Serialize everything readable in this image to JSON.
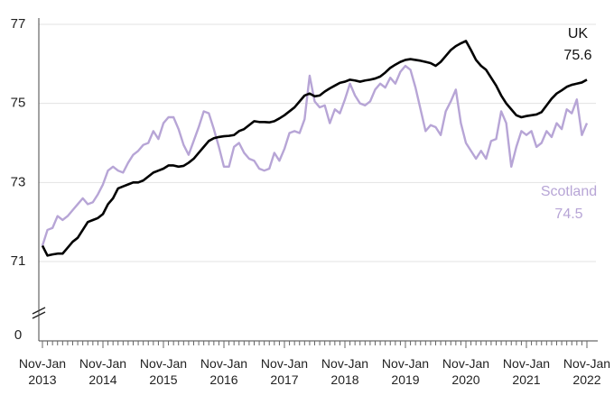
{
  "chart_data": {
    "type": "line",
    "categories": [
      "Nov-Jan 2013",
      null,
      null,
      null,
      null,
      null,
      null,
      null,
      null,
      null,
      null,
      null,
      "Nov-Jan 2014",
      null,
      null,
      null,
      null,
      null,
      null,
      null,
      null,
      null,
      null,
      null,
      "Nov-Jan 2015",
      null,
      null,
      null,
      null,
      null,
      null,
      null,
      null,
      null,
      null,
      null,
      "Nov-Jan 2016",
      null,
      null,
      null,
      null,
      null,
      null,
      null,
      null,
      null,
      null,
      null,
      "Nov-Jan 2017",
      null,
      null,
      null,
      null,
      null,
      null,
      null,
      null,
      null,
      null,
      null,
      "Nov-Jan 2018",
      null,
      null,
      null,
      null,
      null,
      null,
      null,
      null,
      null,
      null,
      null,
      "Nov-Jan 2019",
      null,
      null,
      null,
      null,
      null,
      null,
      null,
      null,
      null,
      null,
      null,
      "Nov-Jan 2020",
      null,
      null,
      null,
      null,
      null,
      null,
      null,
      null,
      null,
      null,
      null,
      "Nov-Jan 2021",
      null,
      null,
      null,
      null,
      null,
      null,
      null,
      null,
      null,
      null,
      null,
      "Nov-Jan 2022"
    ],
    "series": [
      {
        "name": "UK",
        "color": "#000000",
        "values": [
          71.4,
          71.15,
          71.18,
          71.2,
          71.2,
          71.35,
          71.5,
          71.6,
          71.8,
          72.0,
          72.05,
          72.1,
          72.2,
          72.45,
          72.6,
          72.85,
          72.9,
          72.95,
          73.0,
          73.0,
          73.05,
          73.15,
          73.25,
          73.3,
          73.35,
          73.43,
          73.43,
          73.4,
          73.42,
          73.5,
          73.6,
          73.75,
          73.9,
          74.05,
          74.12,
          74.15,
          74.17,
          74.18,
          74.2,
          74.3,
          74.35,
          74.45,
          74.55,
          74.53,
          74.53,
          74.52,
          74.55,
          74.62,
          74.7,
          74.8,
          74.9,
          75.05,
          75.2,
          75.25,
          75.18,
          75.2,
          75.3,
          75.38,
          75.45,
          75.52,
          75.55,
          75.6,
          75.58,
          75.55,
          75.58,
          75.6,
          75.63,
          75.68,
          75.78,
          75.9,
          75.98,
          76.05,
          76.1,
          76.12,
          76.1,
          76.08,
          76.05,
          76.02,
          75.95,
          76.05,
          76.2,
          76.35,
          76.45,
          76.52,
          76.58,
          76.35,
          76.1,
          75.95,
          75.85,
          75.65,
          75.45,
          75.2,
          75.0,
          74.85,
          74.7,
          74.65,
          74.68,
          74.7,
          74.72,
          74.78,
          74.95,
          75.12,
          75.25,
          75.33,
          75.42,
          75.47,
          75.5,
          75.53,
          75.6
        ]
      },
      {
        "name": "Scotland",
        "color": "#b7a5d6",
        "values": [
          71.4,
          71.8,
          71.85,
          72.15,
          72.05,
          72.15,
          72.3,
          72.45,
          72.6,
          72.45,
          72.5,
          72.7,
          72.95,
          73.3,
          73.4,
          73.3,
          73.25,
          73.5,
          73.7,
          73.8,
          73.95,
          74.0,
          74.3,
          74.1,
          74.5,
          74.65,
          74.65,
          74.35,
          73.95,
          73.7,
          74.05,
          74.4,
          74.8,
          74.75,
          74.35,
          73.9,
          73.4,
          73.4,
          73.9,
          74.0,
          73.75,
          73.6,
          73.55,
          73.35,
          73.3,
          73.35,
          73.75,
          73.55,
          73.85,
          74.25,
          74.3,
          74.25,
          74.6,
          75.7,
          75.05,
          74.9,
          74.95,
          74.5,
          74.85,
          74.75,
          75.1,
          75.5,
          75.2,
          75.0,
          74.95,
          75.05,
          75.35,
          75.5,
          75.4,
          75.65,
          75.5,
          75.8,
          75.95,
          75.85,
          75.4,
          74.85,
          74.3,
          74.45,
          74.4,
          74.2,
          74.8,
          75.05,
          75.35,
          74.5,
          74.0,
          73.8,
          73.6,
          73.8,
          73.6,
          74.05,
          74.1,
          74.8,
          74.5,
          73.4,
          73.9,
          74.3,
          74.2,
          74.3,
          73.9,
          74.0,
          74.3,
          74.15,
          74.5,
          74.35,
          74.85,
          74.75,
          75.1,
          74.2,
          74.5
        ]
      }
    ],
    "ylim": [
      0,
      77
    ],
    "axis_break": [
      0,
      71
    ],
    "yticks": [
      0,
      71,
      73,
      75,
      77
    ],
    "grid": true
  }
}
